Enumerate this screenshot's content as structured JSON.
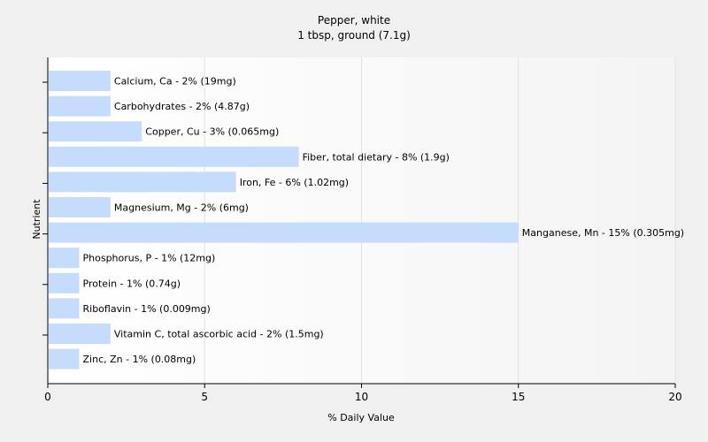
{
  "chart_data": {
    "type": "bar",
    "orientation": "horizontal",
    "title": "Pepper, white",
    "subtitle": "1 tbsp, ground (7.1g)",
    "xlabel": "% Daily Value",
    "ylabel": "Nutrient",
    "xlim": [
      0,
      20
    ],
    "xticks": [
      0,
      5,
      10,
      15,
      20
    ],
    "grid": true,
    "bar_color": "#c6dcfc",
    "categories": [
      "Calcium, Ca",
      "Carbohydrates",
      "Copper, Cu",
      "Fiber, total dietary",
      "Iron, Fe",
      "Magnesium, Mg",
      "Manganese, Mn",
      "Phosphorus, P",
      "Protein",
      "Riboflavin",
      "Vitamin C, total ascorbic acid",
      "Zinc, Zn"
    ],
    "values": [
      2,
      2,
      3,
      8,
      6,
      2,
      15,
      1,
      1,
      1,
      2,
      1
    ],
    "labels": [
      "Calcium, Ca - 2% (19mg)",
      "Carbohydrates - 2% (4.87g)",
      "Copper, Cu - 3% (0.065mg)",
      "Fiber, total dietary - 8% (1.9g)",
      "Iron, Fe - 6% (1.02mg)",
      "Magnesium, Mg - 2% (6mg)",
      "Manganese, Mn - 15% (0.305mg)",
      "Phosphorus, P - 1% (12mg)",
      "Protein - 1% (0.74g)",
      "Riboflavin - 1% (0.009mg)",
      "Vitamin C, total ascorbic acid - 2% (1.5mg)",
      "Zinc, Zn - 1% (0.08mg)"
    ]
  }
}
